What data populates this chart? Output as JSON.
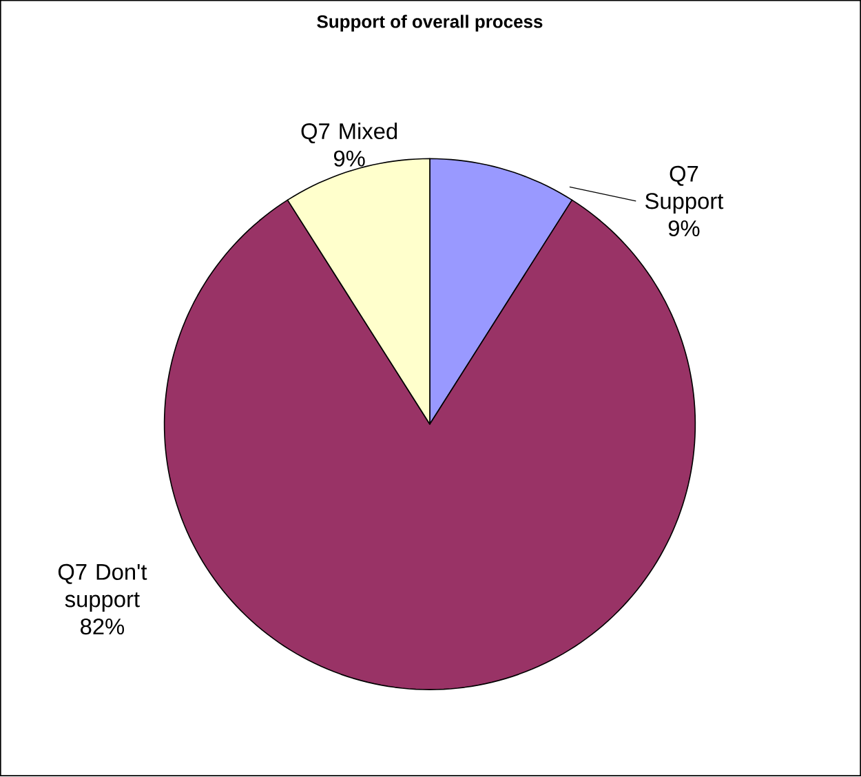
{
  "chart_data": {
    "type": "pie",
    "title": "Support of overall process",
    "categories": [
      "Q7 Support",
      "Q7 Don't support",
      "Q7 Mixed"
    ],
    "values": [
      9,
      82,
      9
    ],
    "colors": [
      "#9999ff",
      "#993366",
      "#ffffcc"
    ],
    "value_labels": [
      "9%",
      "82%",
      "9%"
    ]
  }
}
